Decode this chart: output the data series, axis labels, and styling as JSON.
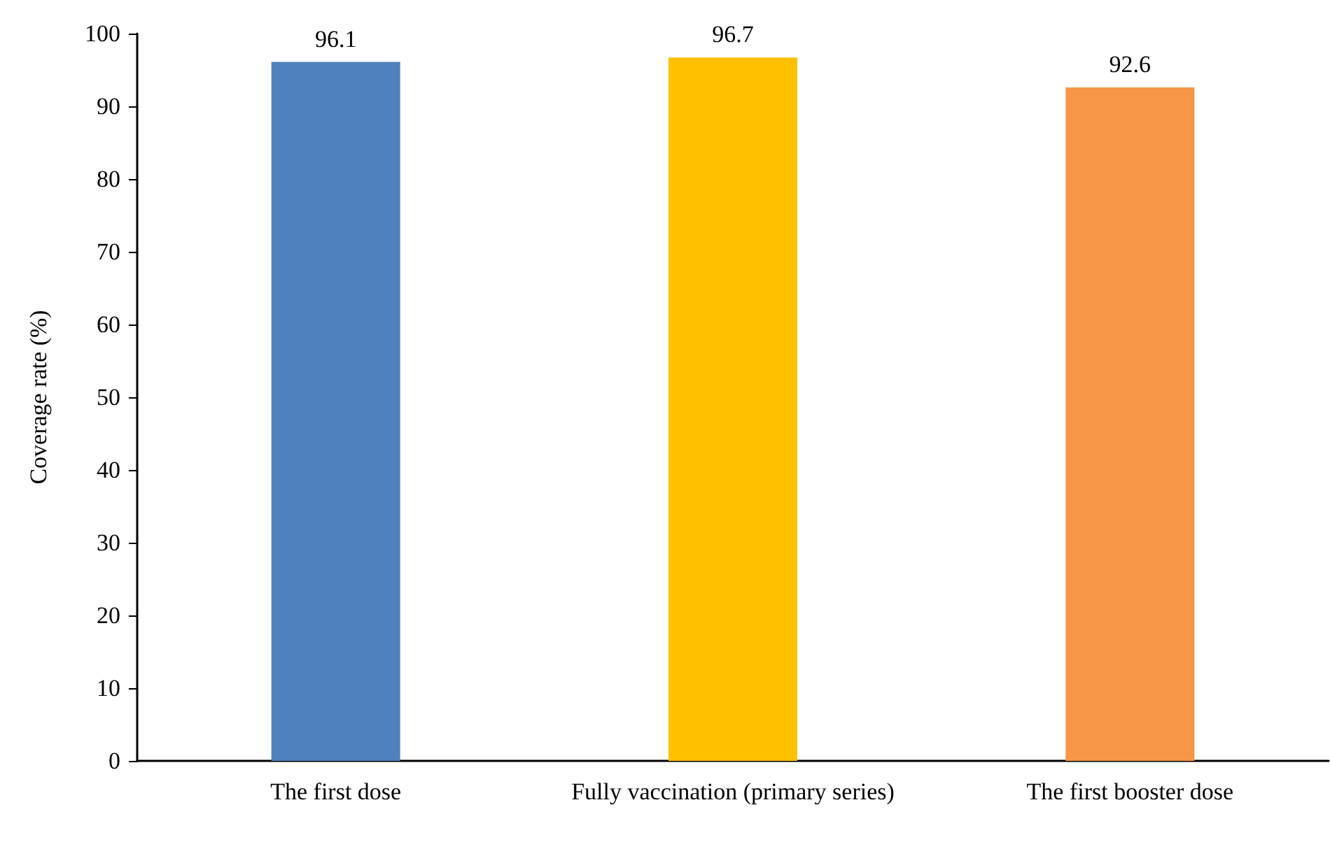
{
  "chart_data": {
    "type": "bar",
    "ylabel": "Coverage rate (%)",
    "categories": [
      "The first dose",
      "Fully vaccination (primary series)",
      "The first booster dose"
    ],
    "values": [
      96.1,
      96.7,
      92.6
    ],
    "colors": [
      "#4f81bd",
      "#ffc000",
      "#f79646"
    ],
    "ylim": [
      0,
      100
    ],
    "yticks": [
      0,
      10,
      20,
      30,
      40,
      50,
      60,
      70,
      80,
      90,
      100
    ],
    "grid": false,
    "data_labels": true
  }
}
